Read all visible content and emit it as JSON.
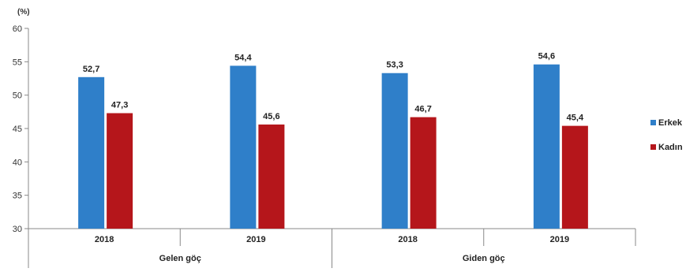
{
  "chart_data": {
    "type": "bar",
    "unit": "(%)",
    "ylim": [
      30,
      60
    ],
    "yticks": [
      30,
      35,
      40,
      45,
      50,
      55,
      60
    ],
    "groups": [
      {
        "label": "Gelen göç",
        "categories": [
          "2018",
          "2019"
        ]
      },
      {
        "label": "Giden göç",
        "categories": [
          "2018",
          "2019"
        ]
      }
    ],
    "categories": [
      "2018",
      "2019",
      "2018",
      "2019"
    ],
    "series": [
      {
        "name": "Erkek",
        "color": "#2f7fc9",
        "values": [
          52.7,
          54.4,
          53.3,
          54.6
        ],
        "labels": [
          "52,7",
          "54,4",
          "53,3",
          "54,6"
        ]
      },
      {
        "name": "Kadın",
        "color": "#b5161b",
        "values": [
          47.3,
          45.6,
          46.7,
          45.4
        ],
        "labels": [
          "47,3",
          "45,6",
          "46,7",
          "45,4"
        ]
      }
    ],
    "legend": "right",
    "grid": false
  }
}
